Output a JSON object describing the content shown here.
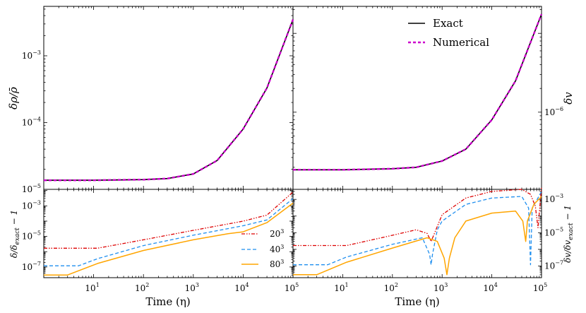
{
  "chart_data": [
    {
      "panel": "top-left",
      "type": "line",
      "xscale": "log",
      "yscale": "log",
      "xlim": [
        1,
        100000
      ],
      "ylim": [
        1e-05,
        0.0055
      ],
      "ylabel": "δρ/ρ̄",
      "yticks": [
        {
          "v": 1e-05,
          "b": "10",
          "e": "−5"
        },
        {
          "v": 0.0001,
          "b": "10",
          "e": "−4"
        },
        {
          "v": 0.001,
          "b": "10",
          "e": "−3"
        }
      ],
      "series": [
        {
          "name": "Exact",
          "color": "#000000",
          "x": [
            1,
            10,
            100,
            300,
            1000,
            3000,
            10000,
            30000,
            100000
          ],
          "y": [
            1.37e-05,
            1.37e-05,
            1.4e-05,
            1.45e-05,
            1.7e-05,
            2.7e-05,
            8e-05,
            0.00033,
            0.0035
          ]
        },
        {
          "name": "Numerical",
          "color": "#cc00cc",
          "x": [
            1,
            10,
            100,
            300,
            1000,
            3000,
            10000,
            30000,
            100000
          ],
          "y": [
            1.37e-05,
            1.37e-05,
            1.4e-05,
            1.45e-05,
            1.7e-05,
            2.7e-05,
            8e-05,
            0.00033,
            0.0035
          ]
        }
      ]
    },
    {
      "panel": "top-right",
      "type": "line",
      "xscale": "log",
      "yscale": "log",
      "xlim": [
        1,
        100000
      ],
      "ylim": [
        1.05e-07,
        2.2e-05
      ],
      "ylabel": "δv",
      "yticks": [
        {
          "v": 1e-06,
          "b": "10",
          "e": "−6"
        }
      ],
      "series": [
        {
          "name": "Exact",
          "color": "#000000",
          "x": [
            1,
            10,
            100,
            300,
            1000,
            3000,
            10000,
            30000,
            100000
          ],
          "y": [
            1.86e-07,
            1.86e-07,
            1.92e-07,
            2e-07,
            2.4e-07,
            3.4e-07,
            8e-07,
            2.5e-06,
            1.75e-05
          ]
        },
        {
          "name": "Numerical",
          "color": "#cc00cc",
          "x": [
            1,
            10,
            100,
            300,
            1000,
            3000,
            10000,
            30000,
            100000
          ],
          "y": [
            1.86e-07,
            1.86e-07,
            1.92e-07,
            2e-07,
            2.4e-07,
            3.4e-07,
            8e-07,
            2.5e-06,
            1.75e-05
          ]
        }
      ],
      "legend": {
        "position": "top-right",
        "entries": [
          "Exact",
          "Numerical"
        ]
      }
    },
    {
      "panel": "bottom-left",
      "type": "line",
      "xscale": "log",
      "yscale": "log",
      "xlim": [
        1,
        100000
      ],
      "ylim": [
        2e-08,
        0.012
      ],
      "xlabel": "Time (η)",
      "ylabel": "δ/δ_exact − 1",
      "yticks": [
        {
          "v": 1e-07,
          "b": "10",
          "e": "−7"
        },
        {
          "v": 1e-05,
          "b": "10",
          "e": "−5"
        },
        {
          "v": 0.001,
          "b": "10",
          "e": "−3"
        }
      ],
      "series": [
        {
          "name": "20³",
          "color": "#dd0000",
          "x": [
            1,
            3,
            12,
            100,
            1000,
            10000,
            30000,
            100000
          ],
          "y": [
            1.7e-06,
            1.7e-06,
            1.7e-06,
            6e-06,
            2.5e-05,
            0.0001,
            0.00025,
            0.008
          ]
        },
        {
          "name": "40³",
          "color": "#1f8fef",
          "x": [
            1,
            5,
            12,
            100,
            1000,
            10000,
            30000,
            100000
          ],
          "y": [
            1.2e-07,
            1.2e-07,
            3.5e-07,
            2.5e-06,
            1.2e-05,
            5e-05,
            0.00012,
            0.003
          ]
        },
        {
          "name": "80³",
          "color": "#ffa500",
          "x": [
            1,
            3,
            12,
            100,
            1000,
            5000,
            10000,
            30000,
            100000
          ],
          "y": [
            3e-08,
            3e-08,
            1.7e-07,
            1.2e-06,
            6e-06,
            1.5e-05,
            2e-05,
            8e-05,
            0.0015
          ]
        }
      ],
      "legend": {
        "position": "lower-right",
        "entries": [
          {
            "base": "20",
            "sup": "3"
          },
          {
            "base": "40",
            "sup": "3"
          },
          {
            "base": "80",
            "sup": "3"
          }
        ]
      }
    },
    {
      "panel": "bottom-right",
      "type": "line",
      "xscale": "log",
      "yscale": "log",
      "xlim": [
        1,
        100000
      ],
      "ylim": [
        2e-08,
        0.004
      ],
      "xlabel": "Time (η)",
      "ylabel": "δv/δv_exact − 1",
      "yticks": [
        {
          "v": 1e-07,
          "b": "10",
          "e": "−7"
        },
        {
          "v": 1e-05,
          "b": "10",
          "e": "−5"
        },
        {
          "v": 0.001,
          "b": "10",
          "e": "−3"
        }
      ],
      "series": [
        {
          "name": "20³",
          "color": "#dd0000",
          "x": [
            1,
            12,
            100,
            300,
            500,
            600,
            700,
            1000,
            3000,
            10000,
            40000,
            60000,
            75000,
            85000,
            100000
          ],
          "y": [
            1.7e-06,
            1.7e-06,
            7e-06,
            1.5e-05,
            9e-06,
            3e-06,
            9e-06,
            0.00012,
            0.0012,
            0.003,
            0.004,
            0.002,
            0.0004,
            2e-05,
            0.005
          ]
        },
        {
          "name": "40³",
          "color": "#1f8fef",
          "x": [
            1,
            5,
            12,
            100,
            400,
            560,
            600,
            640,
            800,
            1000,
            3000,
            10000,
            40000,
            55000,
            60000,
            65000,
            72000,
            100000
          ],
          "y": [
            1.2e-07,
            1.2e-07,
            3.5e-07,
            2e-06,
            5e-06,
            5e-07,
            1.2e-07,
            5e-07,
            1.5e-05,
            5e-05,
            0.0005,
            0.0012,
            0.0015,
            0.0003,
            1.2e-07,
            0.0003,
            0.0005,
            0.003
          ]
        },
        {
          "name": "80³",
          "color": "#ffa500",
          "x": [
            1,
            3,
            12,
            100,
            500,
            800,
            1100,
            1250,
            1400,
            1800,
            3000,
            10000,
            30000,
            42000,
            48000,
            52000,
            70000,
            100000
          ],
          "y": [
            3e-08,
            3e-08,
            1.7e-07,
            1.2e-06,
            5e-06,
            3e-06,
            3e-07,
            3e-08,
            3e-07,
            5e-06,
            5e-05,
            0.00015,
            0.0002,
            5e-05,
            3e-06,
            5e-05,
            0.0005,
            0.0015
          ]
        }
      ]
    }
  ],
  "x_tick_labels": {
    "left": [
      {
        "b": "10",
        "e": "1"
      },
      {
        "b": "10",
        "e": "2"
      },
      {
        "b": "10",
        "e": "3"
      },
      {
        "b": "10",
        "e": "4"
      },
      {
        "b": "10",
        "e": "5"
      }
    ],
    "right": [
      {
        "b": "10",
        "e": "1"
      },
      {
        "b": "10",
        "e": "2"
      },
      {
        "b": "10",
        "e": "3"
      },
      {
        "b": "10",
        "e": "4"
      },
      {
        "b": "10",
        "e": "5"
      }
    ]
  },
  "labels": {
    "xlabel_left": "Time (η)",
    "xlabel_right": "Time (η)",
    "legend_exact": "Exact",
    "legend_numerical": "Numerical"
  }
}
